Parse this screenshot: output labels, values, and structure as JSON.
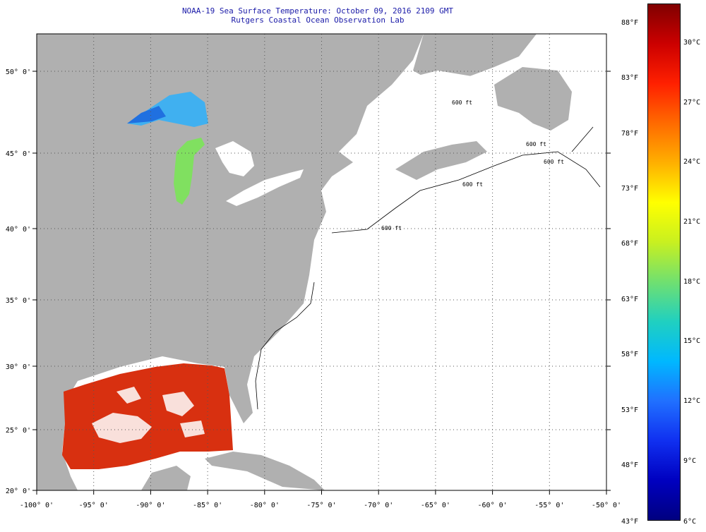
{
  "title_line1": "NOAA-19 Sea Surface Temperature:  October 09, 2016 2109 GMT",
  "title_line2": "Rutgers Coastal Ocean Observation Lab",
  "lon_labels": [
    "-100° 0'",
    "-95° 0'",
    "-90° 0'",
    "-85° 0'",
    "-80° 0'",
    "-75° 0'",
    "-70° 0'",
    "-65° 0'",
    "-60° 0'",
    "-55° 0'",
    "-50° 0'"
  ],
  "lat_labels": [
    "50° 0'",
    "45° 0'",
    "40° 0'",
    "35° 0'",
    "30° 0'",
    "25° 0'",
    "20° 0'"
  ],
  "colorbar": {
    "fahrenheit": [
      "88°F",
      "83°F",
      "78°F",
      "73°F",
      "68°F",
      "63°F",
      "58°F",
      "53°F",
      "48°F",
      "43°F"
    ],
    "celsius": [
      "30°C",
      "27°C",
      "24°C",
      "21°C",
      "18°C",
      "15°C",
      "12°C",
      "9°C",
      "6°C"
    ],
    "gradient_top_to_bottom": [
      "#800000",
      "#cc0000",
      "#ff2000",
      "#ff6a00",
      "#ffb000",
      "#ffff00",
      "#c8f020",
      "#70e070",
      "#20d0c0",
      "#00b8ff",
      "#2070ff",
      "#1030f0",
      "#0000c0",
      "#000080"
    ]
  },
  "colors": {
    "land": "#b0b0b0",
    "ocean_no_data": "#ffffff",
    "gulf_sst": "#e83010",
    "superior_sst": "#40b0f0",
    "michigan_sst": "#80e060",
    "title": "#1a1aa8"
  },
  "contour_labels": [
    "600 ft",
    "600 ft",
    "600 ft",
    "600 ft",
    "600 ft"
  ]
}
